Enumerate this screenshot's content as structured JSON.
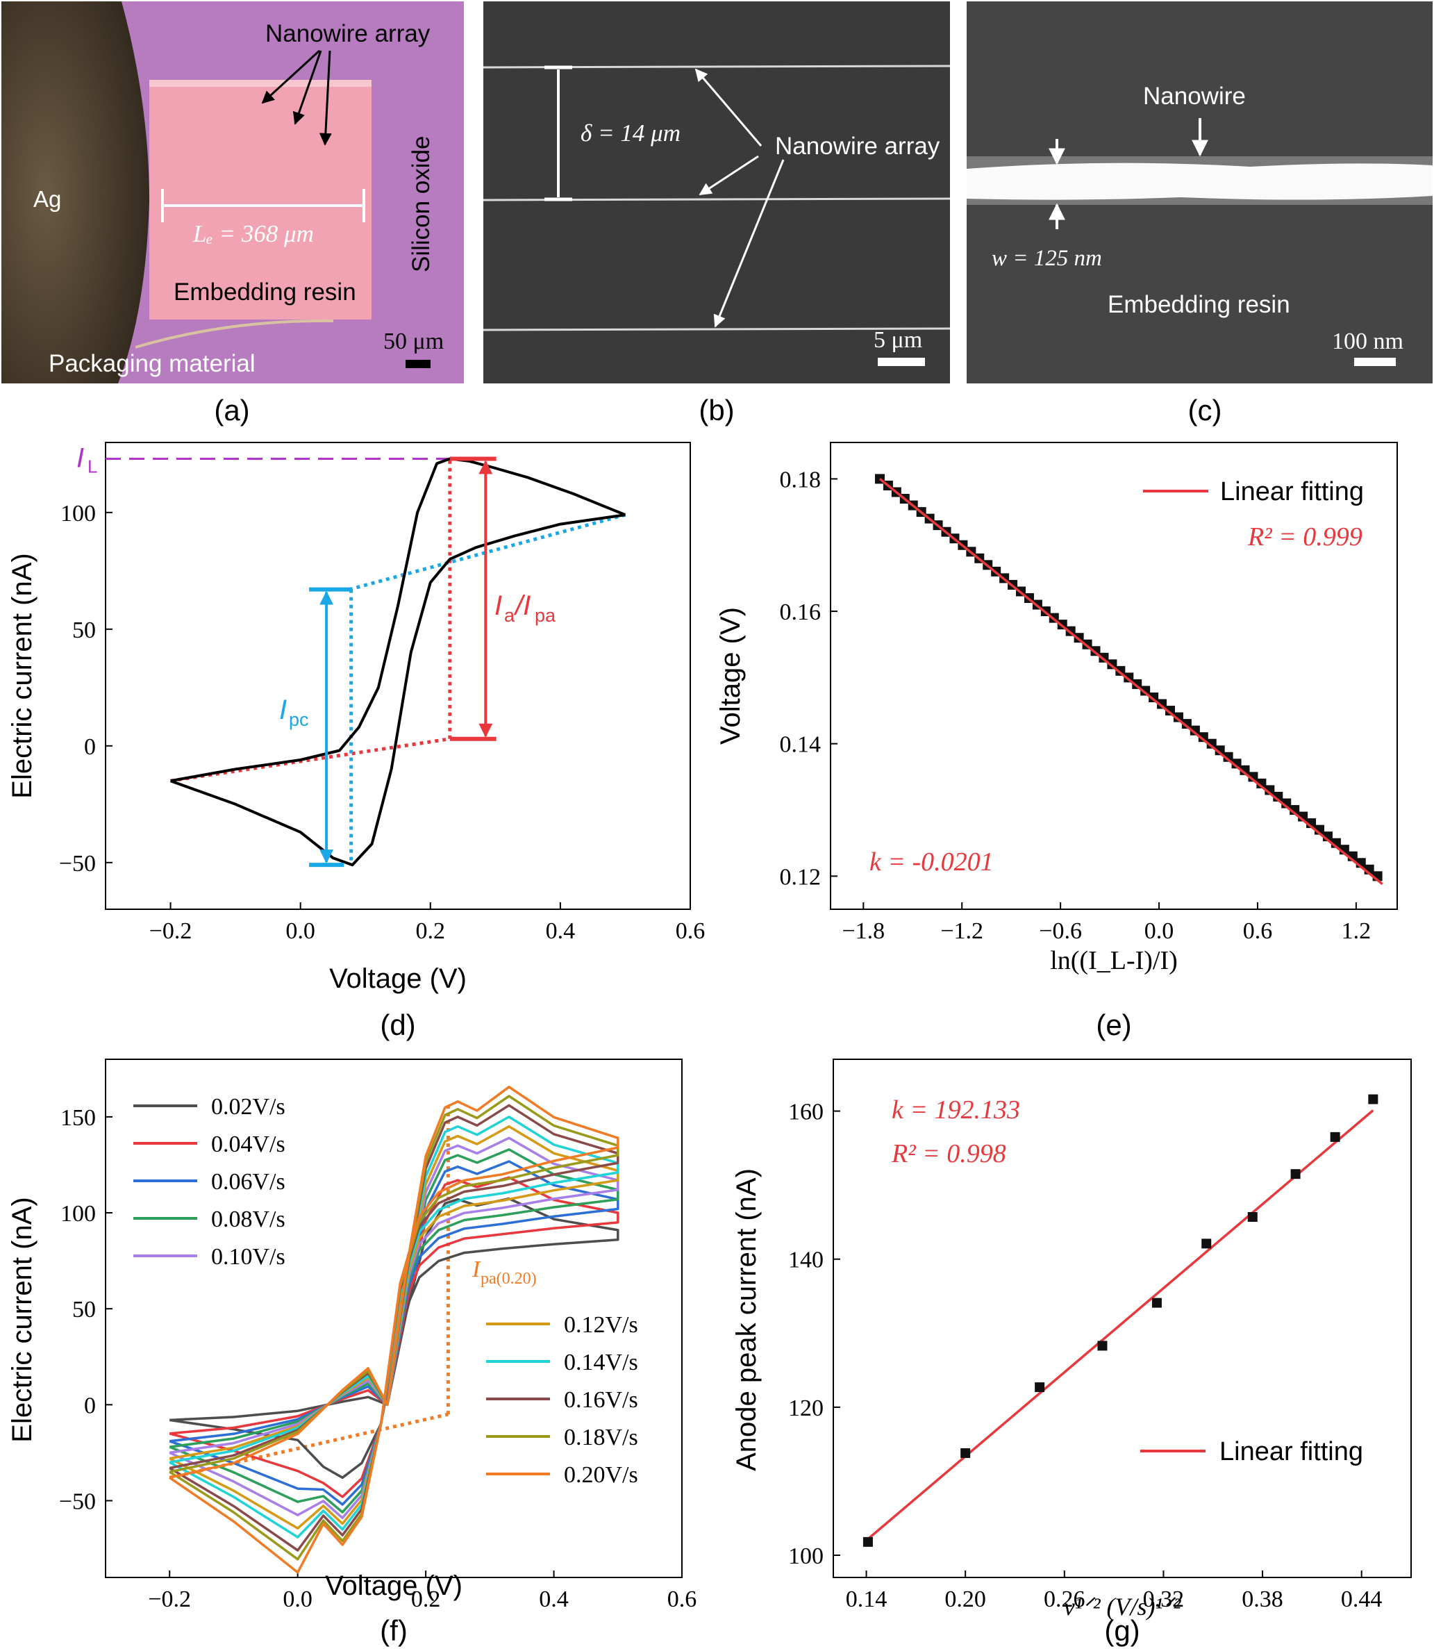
{
  "images": {
    "a": {
      "tag": "(a)",
      "labels": [
        "Nanowire array",
        "Ag",
        "Silicon oxide",
        "Embedding resin",
        "Packaging material"
      ],
      "dimension": "Lₑ = 368 μm",
      "scale": "50 μm"
    },
    "b": {
      "tag": "(b)",
      "labels": [
        "Nanowire array"
      ],
      "dimension": "δ = 14 μm",
      "scale": "5 μm"
    },
    "c": {
      "tag": "(c)",
      "labels": [
        "Nanowire",
        "Embedding resin"
      ],
      "dimension": "w = 125 nm",
      "scale": "100 nm"
    }
  },
  "chart_data": [
    {
      "id": "d",
      "tag": "(d)",
      "type": "line",
      "xlabel": "Voltage (V)",
      "ylabel": "Electric current (nA)",
      "xlim": [
        -0.3,
        0.6
      ],
      "ylim": [
        -70,
        130
      ],
      "xticks": [
        -0.2,
        0.0,
        0.2,
        0.4,
        0.6
      ],
      "yticks": [
        -50,
        0,
        50,
        100
      ],
      "x_tick_labels": [
        "−0.2",
        "0.0",
        "0.2",
        "0.4",
        "0.6"
      ],
      "y_tick_labels": [
        "−50",
        "0",
        "50",
        "100"
      ],
      "series": [
        {
          "color": "#000000",
          "x": [
            -0.2,
            -0.1,
            0.0,
            0.05,
            0.08,
            0.11,
            0.14,
            0.17,
            0.2,
            0.23,
            0.27,
            0.33,
            0.4,
            0.45,
            0.5
          ],
          "y": [
            -15,
            -25,
            -37,
            -48,
            -51,
            -42,
            -10,
            40,
            70,
            80,
            85,
            90,
            95,
            97,
            99
          ]
        },
        {
          "color": "#000000",
          "x": [
            0.5,
            0.42,
            0.35,
            0.3,
            0.26,
            0.23,
            0.21,
            0.18,
            0.15,
            0.12,
            0.09,
            0.06,
            0.0,
            -0.1,
            -0.2
          ],
          "y": [
            99,
            108,
            115,
            119,
            122,
            123,
            121,
            100,
            60,
            25,
            8,
            -2,
            -6,
            -10,
            -15
          ]
        }
      ],
      "annotations": {
        "IL": "I_L",
        "Ia": "I_a/I_pa",
        "Ipc": "I_pc",
        "IL_value": 123,
        "Ipa_voltage": 0.23,
        "Ipa_base": 3,
        "Ipc_voltage": 0.075,
        "Ipc_top": 67,
        "Ipc_bottom": -51
      }
    },
    {
      "id": "e",
      "tag": "(e)",
      "type": "scatter",
      "xlabel": "ln((I_L-I)/I)",
      "ylabel": "Voltage (V)",
      "xlim": [
        -2.0,
        1.45
      ],
      "ylim": [
        0.115,
        0.1855
      ],
      "xticks": [
        -1.8,
        -1.2,
        -0.6,
        0.0,
        0.6,
        1.2
      ],
      "yticks": [
        0.12,
        0.14,
        0.16,
        0.18
      ],
      "x_tick_labels": [
        "−1.8",
        "−1.2",
        "−0.6",
        "0.0",
        "0.6",
        "1.2"
      ],
      "y_tick_labels": [
        "0.12",
        "0.14",
        "0.16",
        "0.18"
      ],
      "points": {
        "x_start": -1.7,
        "x_end": 1.33,
        "y_start": 0.18,
        "y_end": 0.12,
        "count": 61
      },
      "fit": {
        "x": [
          -1.7,
          1.36
        ],
        "y": [
          0.18,
          0.1188
        ]
      },
      "legend": "Linear fitting",
      "r2": "R² = 0.999",
      "k": "k = -0.0201"
    },
    {
      "id": "f",
      "tag": "(f)",
      "type": "line",
      "xlabel": "Voltage (V)",
      "ylabel": "Electric current (nA)",
      "xlim": [
        -0.3,
        0.6
      ],
      "ylim": [
        -90,
        180
      ],
      "xticks": [
        -0.2,
        0.0,
        0.2,
        0.4,
        0.6
      ],
      "yticks": [
        -50,
        0,
        50,
        100,
        150
      ],
      "x_tick_labels": [
        "−0.2",
        "0.0",
        "0.2",
        "0.4",
        "0.6"
      ],
      "y_tick_labels": [
        "−50",
        "0",
        "50",
        "100",
        "150"
      ],
      "series": [
        {
          "name": "0.02V/s",
          "color": "#4d4d4d",
          "ipa": 107,
          "ipc": -38,
          "end_high": 86,
          "start": -8
        },
        {
          "name": "0.04V/s",
          "color": "#e8383d",
          "ipa": 117,
          "ipc": -48,
          "end_high": 95,
          "start": -15
        },
        {
          "name": "0.06V/s",
          "color": "#2c6fd6",
          "ipa": 124,
          "ipc": -52,
          "end_high": 102,
          "start": -19
        },
        {
          "name": "0.08V/s",
          "color": "#2ca05a",
          "ipa": 130,
          "ipc": -56,
          "end_high": 107,
          "start": -22
        },
        {
          "name": "0.10V/s",
          "color": "#a87ee8",
          "ipa": 135,
          "ipc": -59,
          "end_high": 112,
          "start": -25
        },
        {
          "name": "0.12V/s",
          "color": "#d49a16",
          "ipa": 140,
          "ipc": -62,
          "end_high": 117,
          "start": -28
        },
        {
          "name": "0.14V/s",
          "color": "#1fd3d6",
          "ipa": 145,
          "ipc": -65,
          "end_high": 121,
          "start": -30
        },
        {
          "name": "0.16V/s",
          "color": "#8a4a4a",
          "ipa": 150,
          "ipc": -68,
          "end_high": 126,
          "start": -33
        },
        {
          "name": "0.18V/s",
          "color": "#9a9a1a",
          "ipa": 154,
          "ipc": -71,
          "end_high": 130,
          "start": -35
        },
        {
          "name": "0.20V/s",
          "color": "#f07b24",
          "ipa": 158,
          "ipc": -73,
          "end_high": 134,
          "start": -38
        }
      ],
      "annotation": "I_pa(0.20)"
    },
    {
      "id": "g",
      "tag": "(g)",
      "type": "scatter",
      "xlabel": "ν¹ᐟ² (V/s)¹ᐟ²",
      "ylabel": "Anode peak current (nA)",
      "xlim": [
        0.12,
        0.47
      ],
      "ylim": [
        97,
        167
      ],
      "xticks": [
        0.14,
        0.2,
        0.26,
        0.32,
        0.38,
        0.44
      ],
      "yticks": [
        100,
        120,
        140,
        160
      ],
      "x_tick_labels": [
        "0.14",
        "0.20",
        "0.26",
        "0.32",
        "0.38",
        "0.44"
      ],
      "y_tick_labels": [
        "100",
        "120",
        "140",
        "160"
      ],
      "x": [
        0.141,
        0.2,
        0.245,
        0.283,
        0.316,
        0.346,
        0.374,
        0.4,
        0.424,
        0.447
      ],
      "y": [
        101.8,
        113.8,
        122.7,
        128.3,
        134.1,
        142.1,
        145.7,
        151.5,
        156.5,
        161.6
      ],
      "fit": {
        "x": [
          0.141,
          0.447
        ],
        "y": [
          102.2,
          160.1
        ]
      },
      "legend": "Linear fitting",
      "k": "k = 192.133",
      "r2": "R² = 0.998"
    }
  ]
}
